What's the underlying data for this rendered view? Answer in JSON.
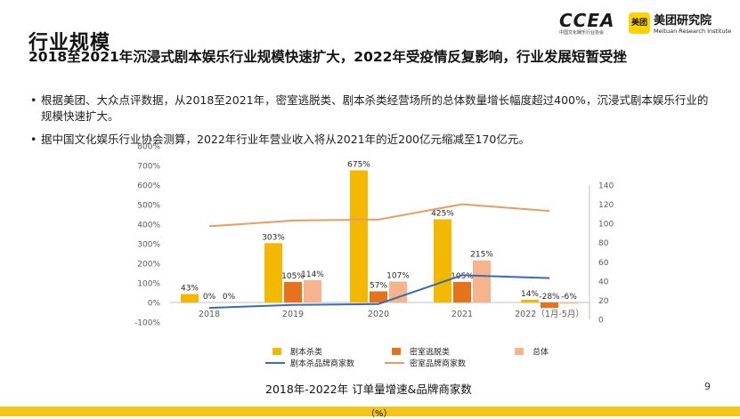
{
  "header": {
    "title": "行业规模",
    "subtitle": "2018至2021年沉浸式剧本娱乐行业规模快速扩大，2022年受疫情反复影响，行业发展短暂受挫",
    "logo_ccea": "CCEA",
    "logo_ccea_sub": "中国文化娱乐行业协会",
    "logo_meituan_box": "美团",
    "logo_meituan_name": "美团研究院",
    "logo_meituan_en": "Meituan Research Institute"
  },
  "bullets": [
    "根据美团、大众点评数据，从2018至2021年，密室逃脱类、剧本杀类经营场所的总体数量增长幅度超过400%，沉浸式剧本娱乐行业的规模快速扩大。",
    "据中国文化娱乐行业协会测算，2022年行业年营业收入将从2021年的近200亿元缩减至170亿元。"
  ],
  "footer": {
    "chart_title": "2018年-2022年 订单量增速&品牌商家数",
    "unit": "（%）",
    "page_number": "9"
  },
  "colors": {
    "script": "#f5b800",
    "escape": "#e8721c",
    "total": "#f7b48c",
    "line_script": "#3a6bb0",
    "line_escape": "#e79d5e",
    "bottom_bar": "#f5c518"
  },
  "chart_data": {
    "type": "bar",
    "categories": [
      "2018",
      "2019",
      "2020",
      "2021",
      "2022（1月-5月）"
    ],
    "series": [
      {
        "name": "剧本杀类",
        "type": "bar",
        "axis": "left",
        "values": [
          43,
          303,
          675,
          425,
          14
        ],
        "labels": [
          "43%",
          "303%",
          "675%",
          "425%",
          "14%"
        ]
      },
      {
        "name": "密室逃脱类",
        "type": "bar",
        "axis": "left",
        "values": [
          0,
          105,
          57,
          105,
          -28
        ],
        "labels": [
          "0%",
          "105%",
          "57%",
          "105%",
          "-28%"
        ]
      },
      {
        "name": "总体",
        "type": "bar",
        "axis": "left",
        "values": [
          0,
          114,
          107,
          215,
          -6
        ],
        "labels": [
          "0%",
          "114%",
          "107%",
          "215%",
          "-6%"
        ]
      },
      {
        "name": "剧本杀品牌商家数",
        "type": "line",
        "axis": "right",
        "values": [
          12,
          15,
          16,
          46,
          43
        ]
      },
      {
        "name": "密室品牌商家数",
        "type": "line",
        "axis": "right",
        "values": [
          97,
          103,
          104,
          120,
          113
        ]
      }
    ],
    "y_left": {
      "min": -100,
      "max": 800,
      "ticks": [
        "-100%",
        "0%",
        "100%",
        "200%",
        "300%",
        "400%",
        "500%",
        "600%",
        "700%",
        "800%"
      ]
    },
    "y_right": {
      "min": 0,
      "max": 140,
      "ticks": [
        "0",
        "20",
        "40",
        "60",
        "80",
        "100",
        "120",
        "140"
      ]
    },
    "legend": [
      "剧本杀类",
      "密室逃脱类",
      "总体",
      "剧本杀品牌商家数",
      "密室品牌商家数"
    ],
    "legend_position": "bottom",
    "grid": false
  }
}
